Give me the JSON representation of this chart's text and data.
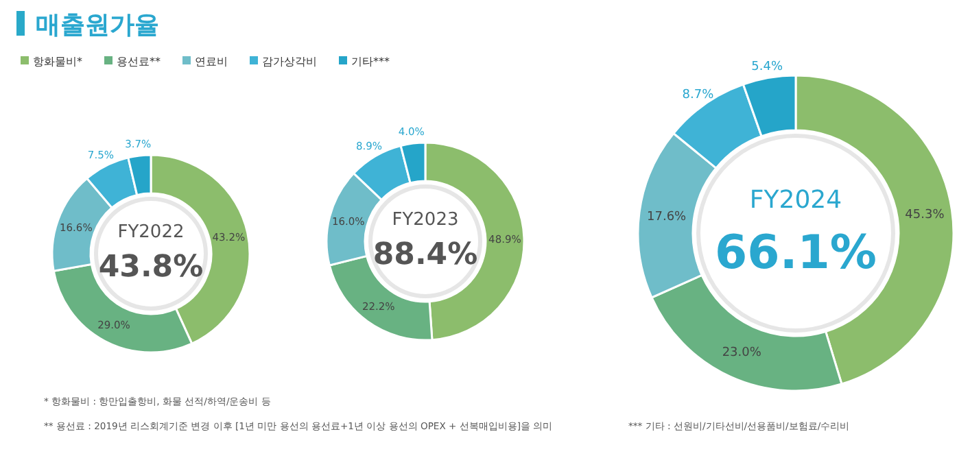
{
  "chart_data": [
    {
      "type": "other",
      "title": "매출원가율",
      "annotations": [
        "* 항화물비 : 항만입출항비, 화물 선적/하역/운송비 등",
        "** 용선료 : 2019년 리스회계기준 변경 이후 [1년 미만 용선의 용선료+1년 이상 용선의 OPEX + 선복매입비용]을 의미",
        "*** 기타 : 선원비/기타선비/선용품비/보험료/수리비"
      ]
    },
    {
      "type": "donut",
      "title": "FY2022",
      "subtitle": "43.8%",
      "legend": "top",
      "categories": [
        "항화물비*",
        "용선료**",
        "연료비",
        "감가상각비",
        "기타***"
      ],
      "values": [
        43.2,
        29.0,
        16.6,
        7.5,
        3.7
      ],
      "value_labels": [
        "43.2%",
        "29.0%",
        "16.6%",
        "7.5%",
        "3.7%"
      ],
      "colors": [
        "#8cbd6c",
        "#68b282",
        "#6fbdc9",
        "#3fb3d6",
        "#25a5c9"
      ]
    },
    {
      "type": "donut",
      "title": "FY2023",
      "subtitle": "88.4%",
      "values": [
        48.9,
        22.2,
        16.0,
        8.9,
        4.0
      ],
      "value_labels": [
        "48.9%",
        "22.2%",
        "16.0%",
        "8.9%",
        "4.0%"
      ],
      "colors": [
        "#8cbd6c",
        "#68b282",
        "#6fbdc9",
        "#3fb3d6",
        "#25a5c9"
      ]
    },
    {
      "type": "donut",
      "title": "FY2024",
      "subtitle": "66.1%",
      "values": [
        45.3,
        23.0,
        17.6,
        8.7,
        5.4
      ],
      "value_labels": [
        "45.3%",
        "23.0%",
        "17.6%",
        "8.7%",
        "5.4%"
      ],
      "colors": [
        "#8cbd6c",
        "#68b282",
        "#6fbdc9",
        "#3fb3d6",
        "#25a5c9"
      ]
    }
  ]
}
